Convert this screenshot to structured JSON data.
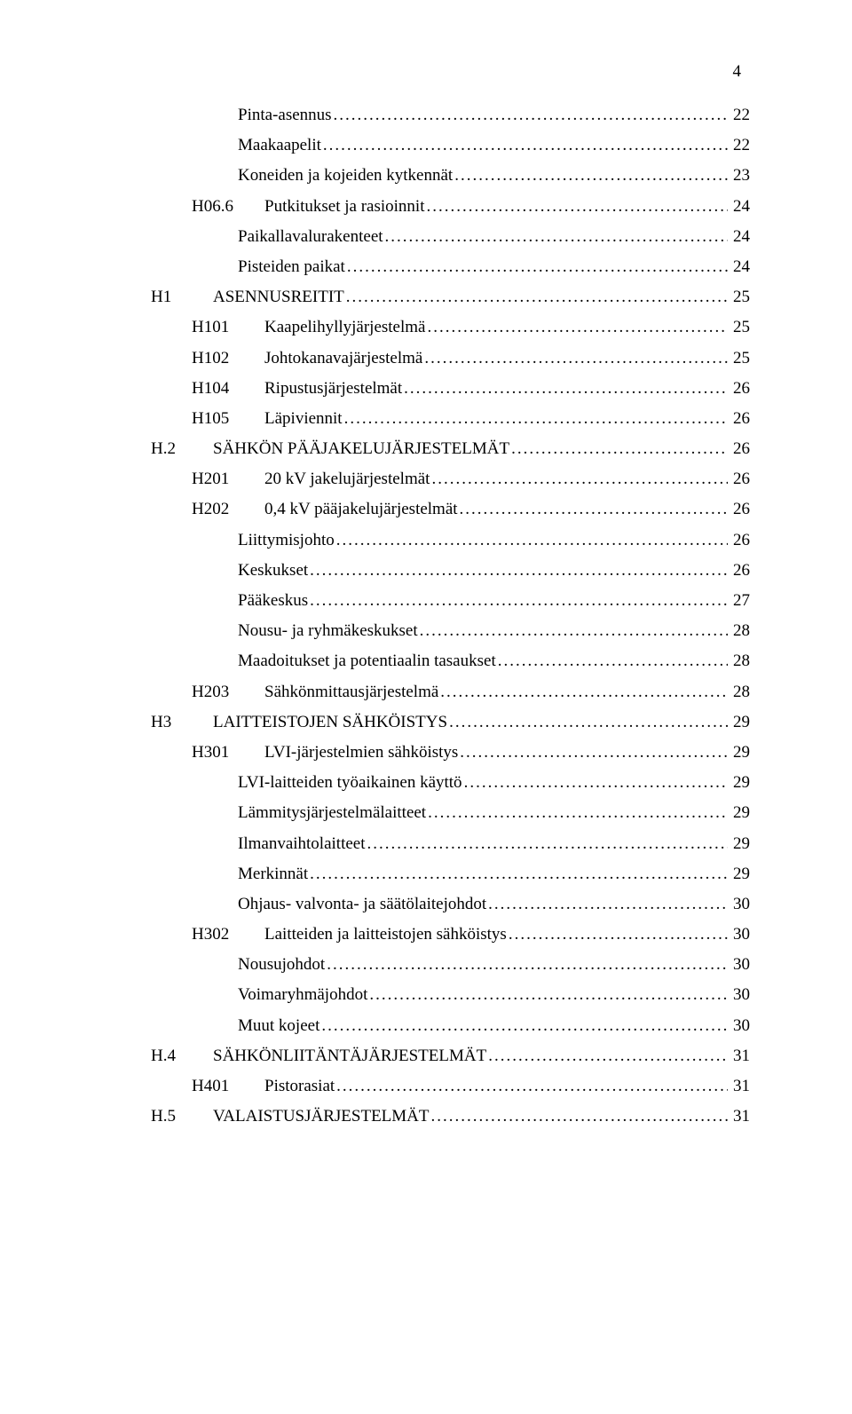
{
  "page_number": "4",
  "entries": [
    {
      "indent": 2,
      "code": "",
      "title": "Pinta-asennus",
      "page": "22"
    },
    {
      "indent": 2,
      "code": "",
      "title": "Maakaapelit",
      "page": "22"
    },
    {
      "indent": 2,
      "code": "",
      "title": "Koneiden ja kojeiden kytkennät",
      "page": "23"
    },
    {
      "indent": 1,
      "code": "H06.6",
      "title": "Putkitukset ja rasioinnit",
      "page": "24"
    },
    {
      "indent": 2,
      "code": "",
      "title": "Paikallavalurakenteet",
      "page": "24"
    },
    {
      "indent": 2,
      "code": "",
      "title": "Pisteiden paikat",
      "page": "24"
    },
    {
      "indent": 0,
      "code": "H1",
      "title": "ASENNUSREITIT",
      "page": "25"
    },
    {
      "indent": 1,
      "code": "H101",
      "title": "Kaapelihyllyjärjestelmä",
      "page": "25"
    },
    {
      "indent": 1,
      "code": "H102",
      "title": "Johtokanavajärjestelmä",
      "page": "25"
    },
    {
      "indent": 1,
      "code": "H104",
      "title": "Ripustusjärjestelmät",
      "page": "26"
    },
    {
      "indent": 1,
      "code": "H105",
      "title": "Läpiviennit",
      "page": "26"
    },
    {
      "indent": 0,
      "code": "H.2",
      "title": "SÄHKÖN PÄÄJAKELUJÄRJESTELMÄT",
      "page": "26"
    },
    {
      "indent": 1,
      "code": "H201",
      "title": "20 kV jakelujärjestelmät",
      "page": "26"
    },
    {
      "indent": 1,
      "code": "H202",
      "title": "0,4 kV pääjakelujärjestelmät",
      "page": "26"
    },
    {
      "indent": 2,
      "code": "",
      "title": "Liittymisjohto",
      "page": "26"
    },
    {
      "indent": 2,
      "code": "",
      "title": "Keskukset",
      "page": "26"
    },
    {
      "indent": 2,
      "code": "",
      "title": "Pääkeskus",
      "page": "27"
    },
    {
      "indent": 2,
      "code": "",
      "title": "Nousu- ja ryhmäkeskukset",
      "page": "28"
    },
    {
      "indent": 2,
      "code": "",
      "title": "Maadoitukset ja potentiaalin tasaukset",
      "page": "28"
    },
    {
      "indent": 1,
      "code": "H203",
      "title": "Sähkönmittausjärjestelmä",
      "page": "28"
    },
    {
      "indent": 0,
      "code": "H3",
      "title": "LAITTEISTOJEN SÄHKÖISTYS",
      "page": "29"
    },
    {
      "indent": 1,
      "code": "H301",
      "title": "LVI-järjestelmien sähköistys",
      "page": "29"
    },
    {
      "indent": 2,
      "code": "",
      "title": "LVI-laitteiden työaikainen käyttö",
      "page": "29"
    },
    {
      "indent": 2,
      "code": "",
      "title": "Lämmitysjärjestelmälaitteet",
      "page": "29"
    },
    {
      "indent": 2,
      "code": "",
      "title": "Ilmanvaihtolaitteet",
      "page": "29"
    },
    {
      "indent": 2,
      "code": "",
      "title": "Merkinnät",
      "page": "29"
    },
    {
      "indent": 2,
      "code": "",
      "title": "Ohjaus- valvonta- ja säätölaitejohdot",
      "page": "30"
    },
    {
      "indent": 1,
      "code": "H302",
      "title": "Laitteiden ja laitteistojen sähköistys",
      "page": "30"
    },
    {
      "indent": 2,
      "code": "",
      "title": "Nousujohdot",
      "page": "30"
    },
    {
      "indent": 2,
      "code": "",
      "title": "Voimaryhmäjohdot",
      "page": "30"
    },
    {
      "indent": 2,
      "code": "",
      "title": "Muut kojeet",
      "page": "30"
    },
    {
      "indent": 0,
      "code": "H.4",
      "title": "SÄHKÖNLIITÄNTÄJÄRJESTELMÄT",
      "page": "31"
    },
    {
      "indent": 1,
      "code": "H401",
      "title": "Pistorasiat",
      "page": "31"
    },
    {
      "indent": 0,
      "code": "H.5",
      "title": "VALAISTUSJÄRJESTELMÄT",
      "page": "31"
    }
  ]
}
